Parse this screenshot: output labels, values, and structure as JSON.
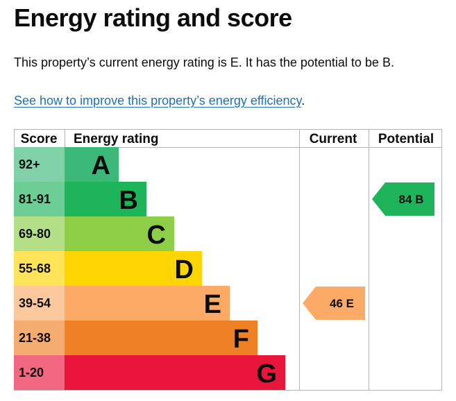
{
  "heading": "Energy rating and score",
  "summary": "This property’s current energy rating is E. It has the potential to be B.",
  "improve_link": "See how to improve this property’s energy efficiency",
  "improve_link_suffix": ".",
  "chart_data": {
    "type": "table",
    "headers": {
      "score": "Score",
      "rating": "Energy rating",
      "current": "Current",
      "potential": "Potential"
    },
    "bands": [
      {
        "score": "92+",
        "letter": "A",
        "color": "#3cb878"
      },
      {
        "score": "81-91",
        "letter": "B",
        "color": "#1db45a"
      },
      {
        "score": "69-80",
        "letter": "C",
        "color": "#8dce46"
      },
      {
        "score": "55-68",
        "letter": "D",
        "color": "#ffd500"
      },
      {
        "score": "39-54",
        "letter": "E",
        "color": "#fcaa65"
      },
      {
        "score": "21-38",
        "letter": "F",
        "color": "#ef8023"
      },
      {
        "score": "1-20",
        "letter": "G",
        "color": "#e9153b"
      }
    ],
    "current": {
      "score": 46,
      "letter": "E",
      "label": "46 E"
    },
    "potential": {
      "score": 84,
      "letter": "B",
      "label": "84 B"
    }
  }
}
